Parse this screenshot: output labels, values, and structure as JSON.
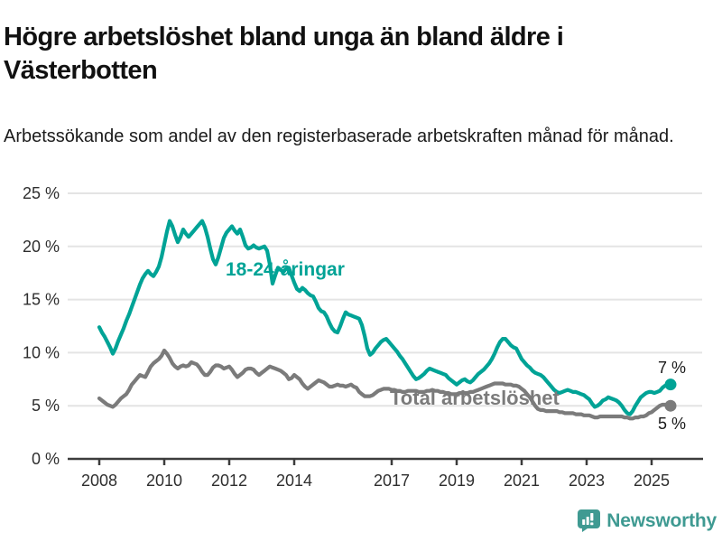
{
  "header": {
    "title": "Högre arbetslöshet bland unga än bland äldre i Västerbotten",
    "subtitle": "Arbetssökande som andel av den registerbaserade arbetskraften månad för månad."
  },
  "annotations": {
    "series_label_young": "18-24-åringar",
    "series_label_total": "Total arbetslöshet",
    "end_label_young": "7 %",
    "end_label_total": "5 %"
  },
  "footer": {
    "brand": "Newsworthy",
    "logo_icon": "bar-chart-speech-bubble-icon",
    "brand_color": "#3f9a92"
  },
  "chart_data": {
    "type": "line",
    "title": "Högre arbetslöshet bland unga än bland äldre i Västerbotten",
    "subtitle": "Arbetssökande som andel av den registerbaserade arbetskraften månad för månad.",
    "x_start_year": 2008.0,
    "x_step_years": 0.0833,
    "xlim": [
      2008.0,
      2025.58
    ],
    "ylim": [
      0,
      25
    ],
    "grid": "horizontal",
    "yticks": [
      0,
      5,
      10,
      15,
      20,
      25
    ],
    "ytick_labels": [
      "0 %",
      "5 %",
      "10 %",
      "15 %",
      "20 %",
      "25 %"
    ],
    "xticks": [
      2008,
      2010,
      2012,
      2014,
      2017,
      2019,
      2021,
      2023,
      2025
    ],
    "xtick_labels": [
      "2008",
      "2010",
      "2012",
      "2014",
      "2017",
      "2019",
      "2021",
      "2023",
      "2025"
    ],
    "colors": {
      "young": "#00a396",
      "total": "#7b7b7b",
      "grid": "#e4e4e4",
      "axis": "#3c3c3c",
      "tick_text": "#2e2e2e"
    },
    "series": [
      {
        "name": "18-24-åringar",
        "color": "#00a396",
        "end_value_label": "7 %",
        "values": [
          12.4,
          11.9,
          11.5,
          11.0,
          10.5,
          9.9,
          10.4,
          11.1,
          11.7,
          12.3,
          13.0,
          13.6,
          14.3,
          15.0,
          15.7,
          16.4,
          17.0,
          17.4,
          17.7,
          17.4,
          17.2,
          17.6,
          18.1,
          19.0,
          20.2,
          21.4,
          22.4,
          21.9,
          21.1,
          20.4,
          20.9,
          21.6,
          21.2,
          20.9,
          21.2,
          21.5,
          21.8,
          22.1,
          22.4,
          21.8,
          20.9,
          19.8,
          18.8,
          18.3,
          19.0,
          19.9,
          20.8,
          21.3,
          21.6,
          21.9,
          21.5,
          21.2,
          21.6,
          20.9,
          20.1,
          19.8,
          19.9,
          20.1,
          19.9,
          19.8,
          19.9,
          20.0,
          19.6,
          18.3,
          16.5,
          17.3,
          18.0,
          17.8,
          17.6,
          17.9,
          18.0,
          17.3,
          16.6,
          16.0,
          15.8,
          16.1,
          15.9,
          15.6,
          15.4,
          15.3,
          14.8,
          14.2,
          13.9,
          13.8,
          13.4,
          12.8,
          12.3,
          12.0,
          11.9,
          12.5,
          13.2,
          13.8,
          13.6,
          13.5,
          13.4,
          13.3,
          13.2,
          12.6,
          11.6,
          10.4,
          9.8,
          10.0,
          10.4,
          10.7,
          11.0,
          11.2,
          11.3,
          11.0,
          10.7,
          10.4,
          10.1,
          9.7,
          9.4,
          9.0,
          8.6,
          8.2,
          7.8,
          7.5,
          7.6,
          7.8,
          8.0,
          8.3,
          8.5,
          8.4,
          8.3,
          8.2,
          8.1,
          8.0,
          7.9,
          7.6,
          7.4,
          7.2,
          7.0,
          7.2,
          7.4,
          7.5,
          7.3,
          7.2,
          7.4,
          7.7,
          8.0,
          8.2,
          8.4,
          8.7,
          9.0,
          9.4,
          9.9,
          10.5,
          11.0,
          11.3,
          11.3,
          11.0,
          10.7,
          10.5,
          10.4,
          9.9,
          9.4,
          9.1,
          8.8,
          8.6,
          8.3,
          8.1,
          8.0,
          7.9,
          7.7,
          7.4,
          7.1,
          6.8,
          6.5,
          6.3,
          6.2,
          6.3,
          6.4,
          6.5,
          6.4,
          6.3,
          6.3,
          6.2,
          6.1,
          6.0,
          5.8,
          5.6,
          5.2,
          4.9,
          5.0,
          5.2,
          5.5,
          5.6,
          5.8,
          5.7,
          5.6,
          5.5,
          5.3,
          5.0,
          4.6,
          4.3,
          4.2,
          4.5,
          5.0,
          5.4,
          5.8,
          6.0,
          6.2,
          6.3,
          6.3,
          6.2,
          6.3,
          6.4,
          6.7,
          6.9,
          7.0,
          7.0
        ]
      },
      {
        "name": "Total arbetslöshet",
        "color": "#7b7b7b",
        "end_value_label": "5 %",
        "values": [
          5.7,
          5.5,
          5.3,
          5.1,
          5.0,
          4.9,
          5.1,
          5.4,
          5.7,
          5.9,
          6.1,
          6.5,
          7.0,
          7.3,
          7.6,
          7.9,
          7.8,
          7.7,
          8.2,
          8.7,
          9.0,
          9.2,
          9.4,
          9.7,
          10.2,
          9.9,
          9.5,
          9.0,
          8.7,
          8.5,
          8.7,
          8.8,
          8.7,
          8.8,
          9.1,
          9.0,
          8.9,
          8.6,
          8.2,
          7.9,
          7.9,
          8.2,
          8.6,
          8.8,
          8.8,
          8.7,
          8.5,
          8.6,
          8.7,
          8.4,
          8.0,
          7.7,
          7.9,
          8.1,
          8.4,
          8.5,
          8.5,
          8.4,
          8.1,
          7.9,
          8.1,
          8.3,
          8.5,
          8.7,
          8.6,
          8.5,
          8.4,
          8.3,
          8.1,
          7.9,
          7.5,
          7.6,
          7.9,
          7.7,
          7.5,
          7.1,
          6.8,
          6.6,
          6.8,
          7.0,
          7.2,
          7.4,
          7.3,
          7.2,
          7.0,
          6.8,
          6.8,
          6.9,
          7.0,
          6.9,
          6.9,
          6.8,
          6.9,
          7.0,
          6.8,
          6.7,
          6.3,
          6.1,
          5.9,
          5.9,
          5.9,
          6.0,
          6.2,
          6.4,
          6.5,
          6.6,
          6.6,
          6.6,
          6.5,
          6.5,
          6.4,
          6.4,
          6.3,
          6.3,
          6.4,
          6.4,
          6.4,
          6.4,
          6.3,
          6.3,
          6.3,
          6.4,
          6.4,
          6.5,
          6.4,
          6.4,
          6.3,
          6.3,
          6.2,
          6.2,
          6.1,
          6.1,
          6.1,
          6.2,
          6.2,
          6.2,
          6.2,
          6.3,
          6.3,
          6.4,
          6.5,
          6.6,
          6.7,
          6.8,
          6.9,
          7.0,
          7.1,
          7.1,
          7.1,
          7.1,
          7.0,
          7.0,
          7.0,
          6.9,
          6.9,
          6.8,
          6.6,
          6.4,
          6.1,
          5.8,
          5.4,
          5.0,
          4.7,
          4.6,
          4.6,
          4.5,
          4.5,
          4.5,
          4.5,
          4.5,
          4.4,
          4.4,
          4.3,
          4.3,
          4.3,
          4.3,
          4.2,
          4.2,
          4.2,
          4.1,
          4.1,
          4.1,
          4.0,
          3.9,
          3.9,
          4.0,
          4.0,
          4.0,
          4.0,
          4.0,
          4.0,
          4.0,
          4.0,
          4.0,
          3.9,
          3.9,
          3.8,
          3.8,
          3.9,
          3.9,
          4.0,
          4.0,
          4.1,
          4.3,
          4.4,
          4.6,
          4.8,
          5.0,
          5.1,
          5.1,
          5.0,
          5.0
        ]
      }
    ]
  }
}
